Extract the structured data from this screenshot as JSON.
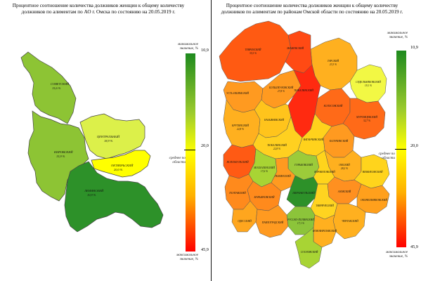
{
  "left_map": {
    "title": "Процентное соотношение количества должников женщин к общему количеству должников по алиментам по АО г. Омска по состоянию на 20.05.2019 г.",
    "legend": {
      "min_label": "минимальное значение, %",
      "min_value": "10,9",
      "avg_value": "20,0",
      "avg_label": "среднее по области",
      "max_value": "45,9",
      "max_label": "максимальное значение, %"
    },
    "districts": [
      {
        "name": "СОВЕТСКИЙ",
        "value": "15,6 %",
        "color": "#8dc434"
      },
      {
        "name": "КИРОВСКИЙ",
        "value": "15,9 %",
        "color": "#8dc434"
      },
      {
        "name": "ЦЕНТРАЛЬНЫЙ",
        "value": "18,9 %",
        "color": "#dcf04a"
      },
      {
        "name": "ОКТЯБРЬСКИЙ",
        "value": "20,0 %",
        "color": "#ffff00"
      },
      {
        "name": "ЛЕНИНСКИЙ",
        "value": "10,9 %",
        "color": "#2d9129"
      }
    ]
  },
  "right_map": {
    "title": "Процентное соотношение количества должников женщин к общему количеству должников по алиментам по районам Омской области по состоянию на 20.05.2019 г.",
    "legend": {
      "min_label": "минимальное значение, %",
      "min_value": "10,9",
      "avg_value": "20,0",
      "avg_label": "среднее по области",
      "max_value": "45,9",
      "max_label": "максимальное значение, %"
    },
    "districts": [
      {
        "name": "ТЕВРИЗСКИЙ",
        "value": "35,5 %",
        "color": "#ff5a12"
      },
      {
        "name": "УСТЬ-ИШИМСКИЙ",
        "value": "",
        "color": "#ff9a20"
      },
      {
        "name": "ТАРСКИЙ",
        "value": "23,3 %",
        "color": "#ffb01f"
      },
      {
        "name": "ЗНАМЕНСКИЙ",
        "value": "",
        "color": "#ff4a14"
      },
      {
        "name": "БОЛЬШЕУКОВСКИЙ",
        "value": "27,8 %",
        "color": "#ff9a20"
      },
      {
        "name": "ТЮКАЛИНСКИЙ",
        "value": "",
        "color": "#ff2a10"
      },
      {
        "name": "СЕДЕЛЬНИКОВСКИЙ",
        "value": "19,1 %",
        "color": "#f2f844"
      },
      {
        "name": "КОЛОСОВСКИЙ",
        "value": "",
        "color": "#ff6a18"
      },
      {
        "name": "МУРОМЦЕВСКИЙ",
        "value": "32,7 %",
        "color": "#ff6a18"
      },
      {
        "name": "КРУТИНСКИЙ",
        "value": "22,8 %",
        "color": "#ffb01f"
      },
      {
        "name": "НАЗЫВАЕВСКИЙ",
        "value": "",
        "color": "#ffc41c"
      },
      {
        "name": "КАЛАЧИНСКИЙ",
        "value": "",
        "color": "#ff9a20"
      },
      {
        "name": "ТЮКАЛИНСКИЙ",
        "value": "22,8 %",
        "color": "#ffd020"
      },
      {
        "name": "ВАГАНЧИНСКИЙ",
        "value": "",
        "color": "#ffd21c"
      },
      {
        "name": "ИСИЛЬКУЛЬСКИЙ",
        "value": "",
        "color": "#ff5a14"
      },
      {
        "name": "МОСКАЛЕНСКИЙ",
        "value": "17,6 %",
        "color": "#a8d434"
      },
      {
        "name": "ОМСКИЙ",
        "value": "28,2 %",
        "color": "#ffb01f"
      },
      {
        "name": "ГОРЬКОВСКИЙ",
        "value": "",
        "color": "#9ccb3a"
      },
      {
        "name": "КОРМИЛОВСКИЙ",
        "value": "",
        "color": "#ffd41c"
      },
      {
        "name": "НИЖНЕОМСКИЙ",
        "value": "",
        "color": "#ffd41c"
      },
      {
        "name": "ЛЮБИНСКИЙ",
        "value": "",
        "color": "#ff9a20"
      },
      {
        "name": "МАРЬЯНОВСКИЙ",
        "value": "",
        "color": "#ff8a1c"
      },
      {
        "name": "ШЕРБАКУЛЬСКИЙ",
        "value": "",
        "color": "#2d9129"
      },
      {
        "name": "ПОЛТАВСКИЙ",
        "value": "",
        "color": "#ff8a1c"
      },
      {
        "name": "ОДЕССКИЙ",
        "value": "",
        "color": "#ffa61e"
      },
      {
        "name": "АЗОВСКИЙ",
        "value": "",
        "color": "#ff9020"
      },
      {
        "name": "ТАВРИЧЕСКИЙ",
        "value": "",
        "color": "#ffd420"
      },
      {
        "name": "ОКОНЕШНИКОВСКИЙ",
        "value": "",
        "color": "#ffa01c"
      },
      {
        "name": "ЧЕРЛАКСКИЙ",
        "value": "",
        "color": "#ffb01f"
      },
      {
        "name": "РУССКО-ПОЛЯНСКИЙ",
        "value": "17,1 %",
        "color": "#8cc43a"
      },
      {
        "name": "ПАВЛОГРАДСКИЙ",
        "value": "",
        "color": "#ff9a20"
      },
      {
        "name": "НОВОВАРШАВСКИЙ",
        "value": "",
        "color": "#ffb01f"
      },
      {
        "name": "СОСНОВСКИЙ",
        "value": "",
        "color": "#a8d434"
      }
    ]
  }
}
